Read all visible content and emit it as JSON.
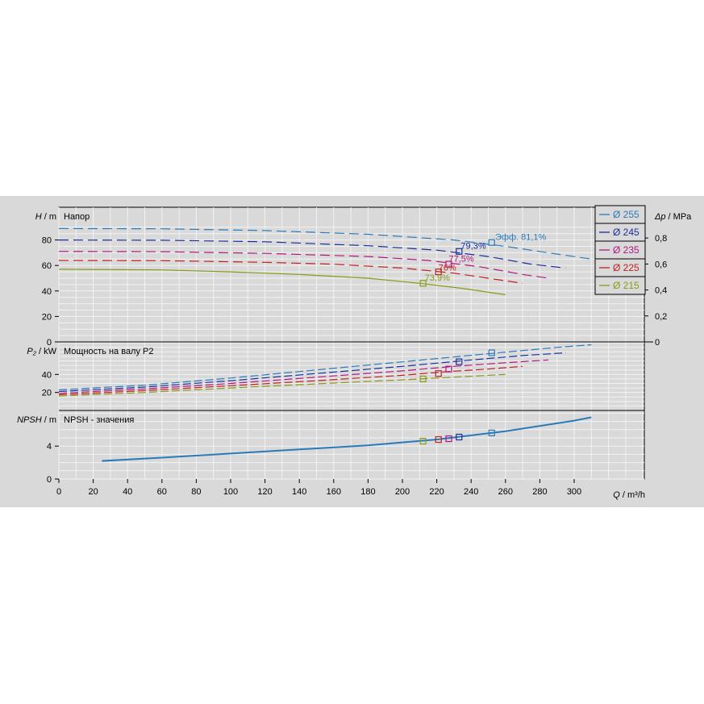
{
  "chart_data": {
    "type": "line",
    "x_axis": {
      "label_italic": "Q",
      "label_unit": " / m³/h",
      "range": [
        0,
        330
      ],
      "ticks": [
        0,
        20,
        40,
        60,
        80,
        100,
        120,
        140,
        160,
        180,
        200,
        220,
        240,
        260,
        280,
        300
      ]
    },
    "legend": {
      "placement": "top-right",
      "items": [
        {
          "label": "Ø 255",
          "color": "#2a7ab8"
        },
        {
          "label": "Ø 245",
          "color": "#1a2f9e"
        },
        {
          "label": "Ø 235",
          "color": "#b0177e"
        },
        {
          "label": "Ø 225",
          "color": "#c21f1f"
        },
        {
          "label": "Ø 215",
          "color": "#8a9a18"
        }
      ]
    },
    "panels": [
      {
        "id": "head",
        "title": "Напор",
        "y_label_italic": "H",
        "y_label_unit": " / m",
        "y_range": [
          0,
          90
        ],
        "y_ticks": [
          0,
          20,
          40,
          60,
          80
        ],
        "right_axis": {
          "label_italic": "Δp",
          "label_unit": " / MPa",
          "ticks": [
            0,
            0.2,
            0.4,
            0.6,
            0.8
          ],
          "tick_labels": [
            "0",
            "0,2",
            "0,4",
            "0,6",
            "0,8"
          ]
        },
        "series": [
          {
            "name": "Ø 255",
            "x": [
              0,
              60,
              120,
              180,
              230,
              260,
              290,
              310
            ],
            "y": [
              89,
              88.8,
              87.4,
              84.5,
              80,
              75,
              69,
              65
            ],
            "dashed_from": 0,
            "solid_to": 0
          },
          {
            "name": "Ø 245",
            "x": [
              0,
              60,
              120,
              180,
              220,
              250,
              275,
              295
            ],
            "y": [
              80,
              79.8,
              78.6,
              75.5,
              72,
              67,
              61,
              58
            ],
            "dashed_from": 0,
            "solid_to": 0
          },
          {
            "name": "Ø 235",
            "x": [
              0,
              60,
              120,
              180,
              215,
              245,
              270,
              285
            ],
            "y": [
              71,
              70.8,
              69.5,
              67,
              64,
              59,
              53,
              50
            ],
            "dashed_from": 0,
            "solid_to": 0
          },
          {
            "name": "Ø 225",
            "x": [
              0,
              60,
              120,
              160,
              200,
              230,
              255,
              270
            ],
            "y": [
              64,
              63.8,
              62.5,
              61,
              58,
              54,
              49,
              46
            ],
            "dashed_from": 0,
            "solid_to": 0
          },
          {
            "name": "Ø 215",
            "x": [
              0,
              60,
              100,
              140,
              180,
              210,
              235,
              260
            ],
            "y": [
              57,
              56.5,
              55,
              53,
              50,
              46,
              42,
              37
            ],
            "dashed_from": 0,
            "solid_to": 0
          }
        ],
        "points": [
          {
            "series": "Ø 255",
            "x": 252,
            "y": 78
          },
          {
            "series": "Ø 245",
            "x": 233,
            "y": 71
          },
          {
            "series": "Ø 235",
            "x": 227,
            "y": 61
          },
          {
            "series": "Ø 225",
            "x": 221,
            "y": 55
          },
          {
            "series": "Ø 215",
            "x": 212,
            "y": 46
          }
        ],
        "annotations": [
          {
            "text": "Эфф.  81,1%",
            "x": 254,
            "y": 80,
            "color": "#2a7ab8"
          },
          {
            "text": "79,3%",
            "x": 234,
            "y": 73,
            "color": "#1a2f9e"
          },
          {
            "text": "77,5%",
            "x": 227,
            "y": 63,
            "color": "#b0177e"
          },
          {
            "text": "76%",
            "x": 221,
            "y": 56,
            "color": "#c21f1f"
          },
          {
            "text": "73,9%",
            "x": 213,
            "y": 48,
            "color": "#8a9a18"
          }
        ]
      },
      {
        "id": "power",
        "title": "Мощность на валу P2",
        "y_label_italic": "P₂",
        "y_label_unit": " / kW",
        "y_range": [
          0,
          75
        ],
        "y_ticks": [
          20,
          40
        ],
        "series": [
          {
            "name": "Ø 255",
            "x": [
              0,
              50,
              100,
              150,
              200,
              250,
              290,
              310
            ],
            "y": [
              23,
              28,
              36,
              45,
              54,
              63,
              70,
              73
            ]
          },
          {
            "name": "Ø 245",
            "x": [
              0,
              50,
              100,
              150,
              200,
              240,
              270,
              295
            ],
            "y": [
              21,
              26,
              33,
              41,
              49,
              56,
              61,
              64
            ]
          },
          {
            "name": "Ø 235",
            "x": [
              0,
              50,
              100,
              150,
              200,
              230,
              260,
              285
            ],
            "y": [
              19,
              24,
              30,
              37,
              44,
              49,
              53,
              56
            ]
          },
          {
            "name": "Ø 225",
            "x": [
              0,
              50,
              100,
              150,
              200,
              225,
              250,
              270
            ],
            "y": [
              17.5,
              22,
              27.5,
              33,
              39,
              43,
              46,
              49
            ]
          },
          {
            "name": "Ø 215",
            "x": [
              0,
              50,
              100,
              150,
              200,
              230,
              260
            ],
            "y": [
              16,
              20,
              25,
              29.5,
              34,
              37,
              40
            ]
          }
        ],
        "points": [
          {
            "series": "Ø 255",
            "x": 252,
            "y": 64
          },
          {
            "series": "Ø 245",
            "x": 233,
            "y": 54
          },
          {
            "series": "Ø 235",
            "x": 227,
            "y": 46
          },
          {
            "series": "Ø 225",
            "x": 221,
            "y": 41
          },
          {
            "series": "Ø 215",
            "x": 212,
            "y": 35
          }
        ]
      },
      {
        "id": "npsh",
        "title": "NPSH - значения",
        "y_label_italic": "NPSH",
        "y_label_unit": " / m",
        "y_range": [
          0,
          8
        ],
        "y_ticks": [
          0,
          4
        ],
        "series": [
          {
            "name": "Ø 255",
            "x": [
              25,
              60,
              100,
              140,
              180,
              220,
              260,
              300,
              310
            ],
            "y": [
              2.2,
              2.6,
              3.1,
              3.6,
              4.1,
              4.8,
              5.8,
              7.1,
              7.5
            ]
          }
        ],
        "points": [
          {
            "series": "Ø 255",
            "x": 252,
            "y": 5.6
          },
          {
            "series": "Ø 245",
            "x": 233,
            "y": 5.1
          },
          {
            "series": "Ø 235",
            "x": 227,
            "y": 4.9
          },
          {
            "series": "Ø 225",
            "x": 221,
            "y": 4.8
          },
          {
            "series": "Ø 215",
            "x": 212,
            "y": 4.6
          }
        ]
      }
    ]
  }
}
